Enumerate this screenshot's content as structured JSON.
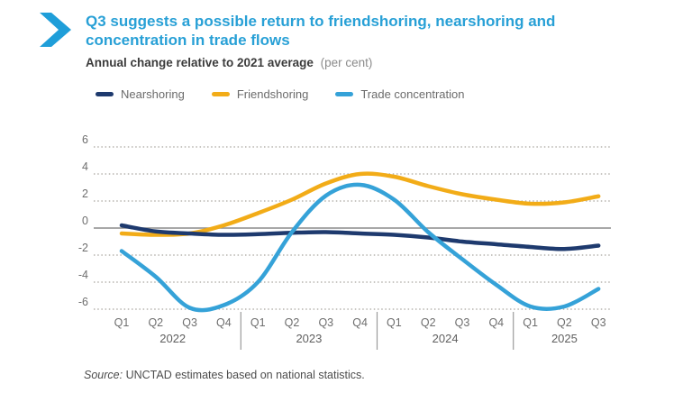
{
  "header": {
    "title": "Q3 suggests a possible return to friendshoring, nearshoring and concentration in trade flows",
    "subtitle": "Annual change relative to 2021 average",
    "subtitle_unit": "(per cent)"
  },
  "accent_colors": {
    "title_blue": "#28a0d6",
    "chevron_blue": "#1f9ed9"
  },
  "chart_data": {
    "type": "line",
    "title": "Q3 suggests a possible return to friendshoring, nearshoring and concentration in trade flows",
    "subtitle": "Annual change relative to 2021 average (per cent)",
    "grid": "dotted-horizontal",
    "legend_position": "top-left",
    "y_ticks": [
      6,
      4,
      2,
      0,
      -2,
      -4,
      -6
    ],
    "ylim": [
      -7,
      7
    ],
    "year_groups": [
      {
        "year": "2022",
        "quarters": [
          "Q1",
          "Q2",
          "Q3",
          "Q4"
        ]
      },
      {
        "year": "2023",
        "quarters": [
          "Q1",
          "Q2",
          "Q3",
          "Q4"
        ]
      },
      {
        "year": "2024",
        "quarters": [
          "Q1",
          "Q2",
          "Q3",
          "Q4"
        ]
      },
      {
        "year": "2025",
        "quarters": [
          "Q1",
          "Q2",
          "Q3"
        ]
      }
    ],
    "series": [
      {
        "name": "Nearshoring",
        "color": "#1e3a6e",
        "values": [
          0.2,
          -0.25,
          -0.4,
          -0.5,
          -0.45,
          -0.35,
          -0.3,
          -0.4,
          -0.5,
          -0.7,
          -1.0,
          -1.2,
          -1.4,
          -1.55,
          -1.3
        ]
      },
      {
        "name": "Friendshoring",
        "color": "#f2ac18",
        "values": [
          -0.4,
          -0.5,
          -0.4,
          0.2,
          1.1,
          2.1,
          3.3,
          4.0,
          3.8,
          3.1,
          2.5,
          2.1,
          1.8,
          1.9,
          2.35
        ]
      },
      {
        "name": "Trade concentration",
        "color": "#35a2d8",
        "values": [
          -1.7,
          -3.6,
          -5.9,
          -5.7,
          -4.0,
          -0.3,
          2.4,
          3.2,
          2.1,
          -0.3,
          -2.3,
          -4.2,
          -5.8,
          -5.8,
          -4.5
        ]
      }
    ]
  },
  "source": {
    "label": "Source:",
    "text": "UNCTAD estimates based on national statistics."
  }
}
